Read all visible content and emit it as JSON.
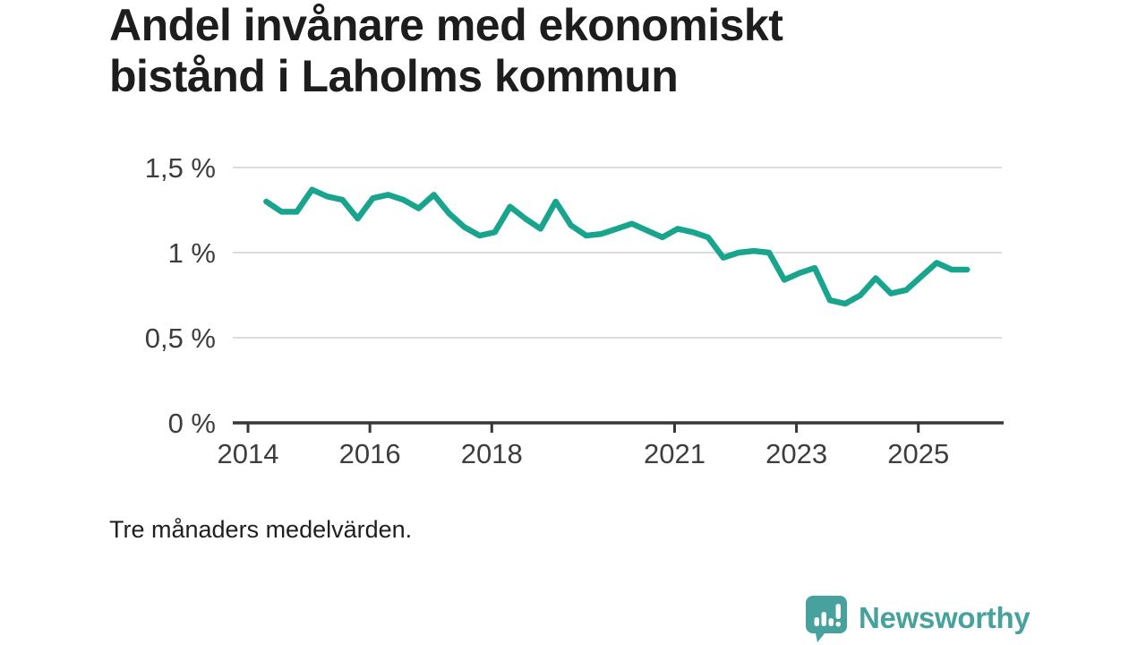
{
  "page": {
    "title_lines": [
      "Andel invånare med ekonomiskt",
      "bistånd i Laholms kommun"
    ],
    "footnote": "Tre månaders medelvärden.",
    "background": "#ffffff"
  },
  "branding": {
    "name": "Newsworthy",
    "logo_icon": "bar-chart-speech-bubble-icon",
    "color": "#47a19c"
  },
  "chart_data": {
    "type": "line",
    "title": "Andel invånare med ekonomiskt bistånd i Laholms kommun",
    "note": "Tre månaders medelvärden.",
    "unit": "%",
    "xlabel": "",
    "ylabel": "",
    "grid": "horizontal",
    "legend_position": "none",
    "line_color": "#19a48d",
    "grid_color": "#dcdcdc",
    "axis_color": "#363636",
    "label_color": "#3d3d3d",
    "xlim": [
      2013.75,
      2026.4
    ],
    "ylim": [
      0,
      1.5
    ],
    "x_ticks": [
      2014,
      2016,
      2018,
      2021,
      2023,
      2025
    ],
    "x_tick_labels": [
      "2014",
      "2016",
      "2018",
      "2021",
      "2023",
      "2025"
    ],
    "y_ticks": [
      0,
      0.5,
      1,
      1.5
    ],
    "y_tick_labels": [
      "0 %",
      "0,5 %",
      "1 %",
      "1,5 %"
    ],
    "series": [
      {
        "name": "Andel invånare med ekonomiskt bistånd, Laholms kommun",
        "x": [
          2014.3,
          2014.55,
          2014.8,
          2015.05,
          2015.3,
          2015.55,
          2015.8,
          2016.05,
          2016.3,
          2016.55,
          2016.8,
          2017.05,
          2017.3,
          2017.55,
          2017.8,
          2018.05,
          2018.3,
          2018.55,
          2018.8,
          2019.05,
          2019.3,
          2019.55,
          2019.8,
          2020.05,
          2020.3,
          2020.55,
          2020.8,
          2021.05,
          2021.3,
          2021.55,
          2021.8,
          2022.05,
          2022.3,
          2022.55,
          2022.8,
          2023.05,
          2023.3,
          2023.55,
          2023.8,
          2024.05,
          2024.3,
          2024.55,
          2024.8,
          2025.05,
          2025.3,
          2025.55,
          2025.8
        ],
        "y": [
          1.3,
          1.24,
          1.24,
          1.37,
          1.33,
          1.31,
          1.2,
          1.32,
          1.34,
          1.31,
          1.26,
          1.34,
          1.23,
          1.15,
          1.1,
          1.12,
          1.27,
          1.2,
          1.14,
          1.3,
          1.16,
          1.1,
          1.11,
          1.14,
          1.17,
          1.13,
          1.09,
          1.14,
          1.12,
          1.09,
          0.97,
          1.0,
          1.01,
          1.0,
          0.84,
          0.88,
          0.91,
          0.72,
          0.7,
          0.75,
          0.85,
          0.76,
          0.78,
          0.86,
          0.94,
          0.9,
          0.9
        ]
      }
    ]
  }
}
